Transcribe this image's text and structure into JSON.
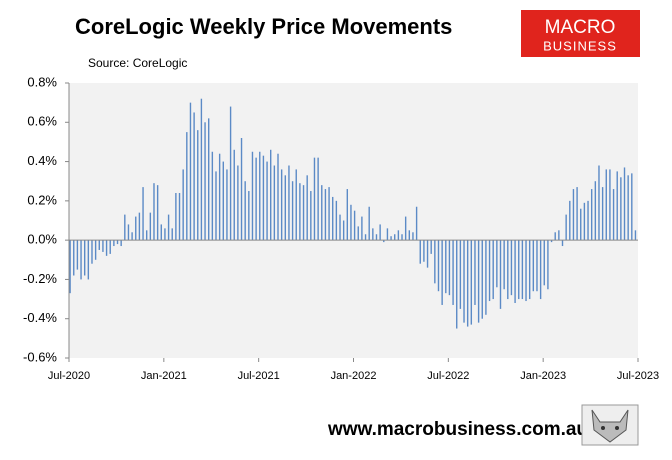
{
  "chart_data": {
    "type": "bar",
    "title": "CoreLogic Weekly Price Movements",
    "subtitle": "Source: CoreLogic",
    "logo": [
      "MACRO",
      "BUSINESS"
    ],
    "footer": "www.macrobusiness.com.au",
    "color": "#5b8ac6",
    "x": [
      0,
      1,
      2,
      3,
      4,
      5,
      6,
      7,
      8,
      9,
      10,
      11,
      12,
      13,
      14,
      15,
      16,
      17,
      18,
      19,
      20,
      21,
      22,
      23,
      24,
      25,
      26,
      27,
      28,
      29,
      30,
      31,
      32,
      33,
      34,
      35,
      36,
      37,
      38,
      39,
      40,
      41,
      42,
      43,
      44,
      45,
      46,
      47,
      48,
      49,
      50,
      51,
      52,
      53,
      54,
      55,
      56,
      57,
      58,
      59,
      60,
      61,
      62,
      63,
      64,
      65,
      66,
      67,
      68,
      69,
      70,
      71,
      72,
      73,
      74,
      75,
      76,
      77,
      78,
      79,
      80,
      81,
      82,
      83,
      84,
      85,
      86,
      87,
      88,
      89,
      90,
      91,
      92,
      93,
      94,
      95,
      96,
      97,
      98,
      99,
      100,
      101,
      102,
      103,
      104,
      105,
      106,
      107,
      108,
      109,
      110,
      111,
      112,
      113,
      114,
      115,
      116,
      117,
      118,
      119,
      120,
      121,
      122,
      123,
      124,
      125,
      126,
      127,
      128,
      129,
      130,
      131,
      132,
      133,
      134,
      135,
      136,
      137,
      138,
      139,
      140,
      141,
      142,
      143,
      144,
      145,
      146,
      147,
      148,
      149,
      150,
      151,
      152,
      153,
      154,
      155
    ],
    "values": [
      -0.27,
      -0.18,
      -0.15,
      -0.2,
      -0.18,
      -0.2,
      -0.12,
      -0.1,
      -0.05,
      -0.06,
      -0.08,
      -0.07,
      -0.03,
      -0.02,
      -0.03,
      0.13,
      0.08,
      0.04,
      0.12,
      0.14,
      0.27,
      0.05,
      0.14,
      0.29,
      0.28,
      0.08,
      0.06,
      0.13,
      0.06,
      0.24,
      0.24,
      0.36,
      0.55,
      0.7,
      0.65,
      0.56,
      0.72,
      0.6,
      0.62,
      0.45,
      0.35,
      0.44,
      0.4,
      0.36,
      0.68,
      0.46,
      0.38,
      0.52,
      0.3,
      0.25,
      0.45,
      0.42,
      0.45,
      0.43,
      0.4,
      0.46,
      0.38,
      0.44,
      0.36,
      0.33,
      0.38,
      0.3,
      0.36,
      0.29,
      0.28,
      0.33,
      0.25,
      0.42,
      0.42,
      0.28,
      0.26,
      0.27,
      0.22,
      0.2,
      0.13,
      0.1,
      0.26,
      0.18,
      0.15,
      0.07,
      0.12,
      0.03,
      0.17,
      0.06,
      0.03,
      0.08,
      -0.01,
      0.06,
      0.02,
      0.03,
      0.05,
      0.03,
      0.12,
      0.05,
      0.04,
      0.17,
      -0.12,
      -0.11,
      -0.14,
      -0.07,
      -0.22,
      -0.26,
      -0.33,
      -0.27,
      -0.28,
      -0.33,
      -0.45,
      -0.35,
      -0.42,
      -0.44,
      -0.43,
      -0.33,
      -0.42,
      -0.4,
      -0.38,
      -0.31,
      -0.3,
      -0.24,
      -0.35,
      -0.25,
      -0.3,
      -0.28,
      -0.32,
      -0.3,
      -0.3,
      -0.31,
      -0.3,
      -0.26,
      -0.26,
      -0.3,
      -0.23,
      -0.25,
      -0.01,
      0.04,
      0.05,
      -0.03,
      0.13,
      0.2,
      0.26,
      0.27,
      0.16,
      0.19,
      0.2,
      0.26,
      0.3,
      0.38,
      0.27,
      0.36,
      0.36,
      0.26,
      0.35,
      0.32,
      0.37,
      0.33,
      0.34,
      0.05
    ],
    "xlim": [
      0,
      156
    ],
    "xticks": [
      {
        "value": 0,
        "label": "Jul-2020"
      },
      {
        "value": 26,
        "label": "Jan-2021"
      },
      {
        "value": 52,
        "label": "Jul-2021"
      },
      {
        "value": 78,
        "label": "Jan-2022"
      },
      {
        "value": 104,
        "label": "Jul-2022"
      },
      {
        "value": 130,
        "label": "Jan-2023"
      },
      {
        "value": 156,
        "label": "Jul-2023"
      }
    ],
    "ylim": [
      -0.6,
      0.8
    ],
    "yticks": [
      {
        "value": -0.6,
        "label": "-0.6%"
      },
      {
        "value": -0.4,
        "label": "-0.4%"
      },
      {
        "value": -0.2,
        "label": "-0.2%"
      },
      {
        "value": 0,
        "label": "0.0%"
      },
      {
        "value": 0.2,
        "label": "0.2%"
      },
      {
        "value": 0.4,
        "label": "0.4%"
      },
      {
        "value": 0.6,
        "label": "0.6%"
      },
      {
        "value": 0.8,
        "label": "0.8%"
      }
    ]
  }
}
